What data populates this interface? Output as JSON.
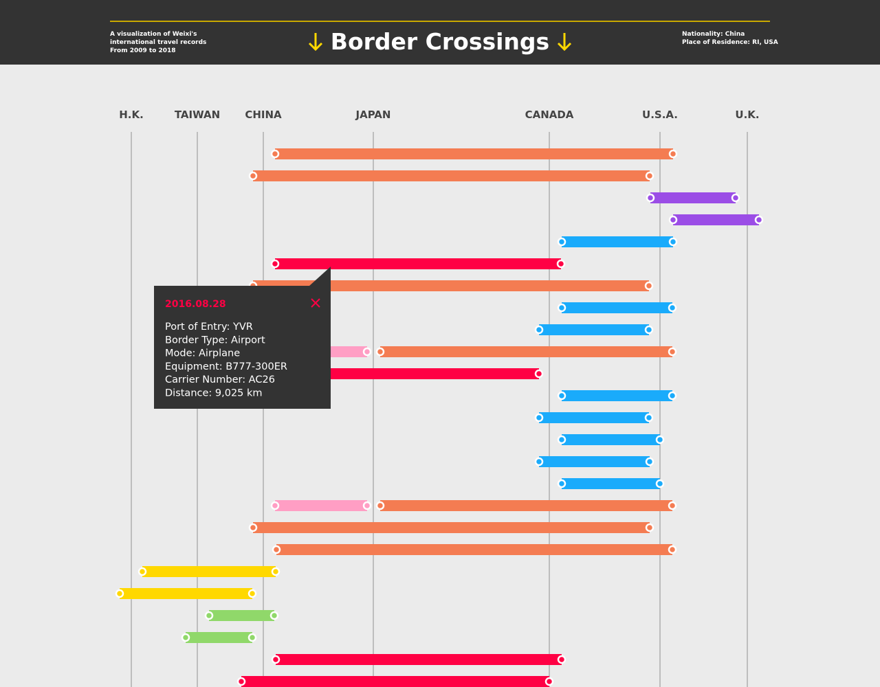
{
  "header": {
    "description": [
      "A visualization of Weixi's",
      "international travel records",
      "From 2009 to 2018"
    ],
    "title": "Border Crossings",
    "info": [
      "Nationality: China",
      "Place of Residence: RI, USA"
    ]
  },
  "columns": [
    "H.K.",
    "TAIWAN",
    "CHINA",
    "JAPAN",
    "CANADA",
    "U.S.A.",
    "U.K."
  ],
  "tooltip": {
    "date": "2016.08.28",
    "lines": [
      "Port of Entry: YVR",
      "Border Type: Airport",
      "Mode: Airplane",
      "Equipment: B777-300ER",
      "Carrier Number: AC26",
      "Distance: 9,025 km"
    ]
  }
}
